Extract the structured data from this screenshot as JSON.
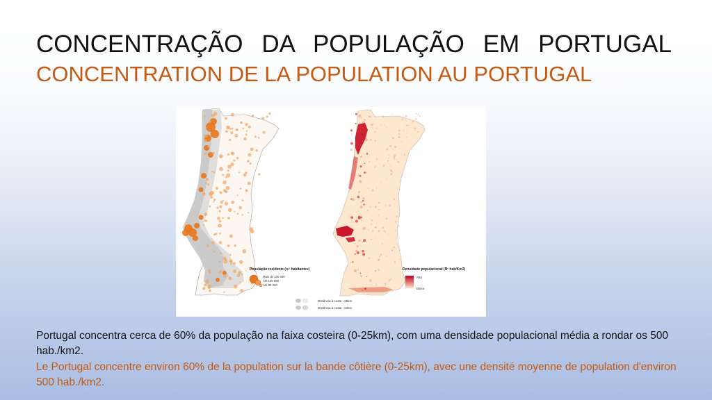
{
  "slide": {
    "title_pt": "CONCENTRAÇÃO DA POPULAÇÃO EM PORTUGAL",
    "title_fr": "CONCENTRATION DE LA POPULATION AU PORTUGAL",
    "body_pt": "Portugal concentra cerca de 60% da população na faixa costeira (0-25km), com uma densidade populacional média a rondar os 500 hab./km2.",
    "body_fr": "Le Portugal concentre environ 60% de la population sur la bande côtière (0-25km), avec une densité moyenne de population d'environ 500 hab./km2."
  },
  "map_left": {
    "legend_title": "População residente (n.º habitantes)",
    "legend_items": [
      "Mais de 100 000",
      "Até 100 000",
      "Até 50 000"
    ],
    "marker_color": "#e8761c"
  },
  "map_right": {
    "legend_title": "Densidade populacional (Nº hab/Km2)",
    "legend_high": "Alta",
    "legend_low": "Baixa",
    "color_high": "#c4001a",
    "color_low": "#fde3c8"
  },
  "distance_legend": {
    "items": [
      "Distância à costa - 25km",
      "Distância à costa - 50km"
    ]
  }
}
